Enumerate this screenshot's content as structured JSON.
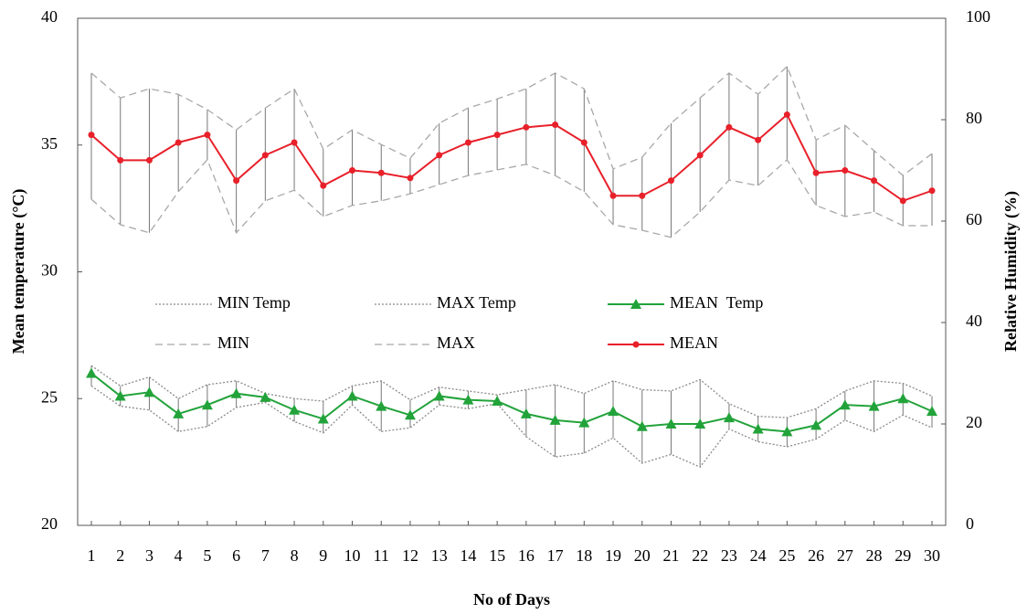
{
  "chart_data": {
    "type": "line",
    "xlabel": "No of Days",
    "ylabel": "Mean temperature (°C)",
    "y2label": "Relative Humidity (%)",
    "categories": [
      1,
      2,
      3,
      4,
      5,
      6,
      7,
      8,
      9,
      10,
      11,
      12,
      13,
      14,
      15,
      16,
      17,
      18,
      19,
      20,
      21,
      22,
      23,
      24,
      25,
      26,
      27,
      28,
      29,
      30
    ],
    "ylim": [
      20,
      40
    ],
    "yticks": [
      20,
      25,
      30,
      35,
      40
    ],
    "y2lim": [
      0,
      100
    ],
    "y2ticks": [
      0,
      20,
      40,
      60,
      80,
      100
    ],
    "series": [
      {
        "name": "MIN Temp",
        "color": "#8a8a8a",
        "dash": "dotted",
        "values": [
          25.5,
          24.7,
          24.55,
          23.7,
          23.9,
          24.65,
          24.85,
          24.1,
          23.65,
          24.75,
          23.7,
          23.85,
          24.75,
          24.6,
          24.8,
          23.5,
          22.7,
          22.85,
          23.45,
          22.45,
          22.8,
          22.3,
          23.8,
          23.3,
          23.1,
          23.4,
          24.15,
          23.7,
          24.35,
          23.85
        ]
      },
      {
        "name": "MAX Temp",
        "color": "#8a8a8a",
        "dash": "dotted",
        "values": [
          26.3,
          25.5,
          25.85,
          25.0,
          25.55,
          25.7,
          25.2,
          25.0,
          24.9,
          25.5,
          25.7,
          24.95,
          25.45,
          25.3,
          25.15,
          25.35,
          25.55,
          25.2,
          25.7,
          25.35,
          25.3,
          25.75,
          24.8,
          24.3,
          24.25,
          24.6,
          25.3,
          25.7,
          25.6,
          25.1
        ]
      },
      {
        "name": "MEAN  Temp",
        "color": "#22a33a",
        "marker": "triangle",
        "values": [
          26.0,
          25.1,
          25.25,
          24.4,
          24.75,
          25.2,
          25.05,
          24.55,
          24.2,
          25.1,
          24.7,
          24.35,
          25.1,
          24.95,
          24.9,
          24.4,
          24.15,
          24.05,
          24.5,
          23.9,
          24.0,
          24.0,
          24.25,
          23.8,
          23.7,
          23.95,
          24.75,
          24.7,
          25.0,
          24.5
        ]
      },
      {
        "name": "MIN",
        "color": "#a8a8a8",
        "dash": "dashed",
        "axis": "y2",
        "values": [
          64.3,
          59.3,
          57.7,
          65.8,
          72.1,
          57.7,
          64.0,
          66.1,
          60.9,
          63.1,
          64.0,
          65.4,
          67.2,
          69.0,
          70.1,
          71.2,
          69.0,
          65.8,
          59.3,
          58.2,
          56.8,
          61.8,
          68.1,
          67.0,
          72.1,
          63.1,
          60.9,
          61.8,
          59.1,
          59.1
        ]
      },
      {
        "name": "MAX",
        "color": "#a8a8a8",
        "dash": "dashed",
        "axis": "y2",
        "values": [
          89.2,
          84.3,
          86.1,
          85.0,
          82.0,
          78.0,
          82.3,
          86.1,
          74.2,
          78.0,
          75.1,
          72.4,
          79.3,
          82.3,
          84.1,
          86.1,
          89.2,
          86.1,
          70.3,
          72.6,
          79.3,
          84.3,
          89.2,
          85.0,
          90.5,
          76.0,
          78.9,
          73.9,
          69.0,
          73.3
        ]
      },
      {
        "name": "MEAN",
        "color": "#e8202a",
        "marker": "circle",
        "axis": "y2",
        "values": [
          77,
          72,
          72,
          75.5,
          77,
          68,
          73,
          75.5,
          67,
          70,
          69.5,
          68.5,
          73,
          75.5,
          77,
          78.5,
          79,
          75.5,
          65,
          65,
          68,
          73,
          78.5,
          76,
          81,
          69.5,
          70,
          68,
          64,
          66
        ]
      }
    ]
  }
}
